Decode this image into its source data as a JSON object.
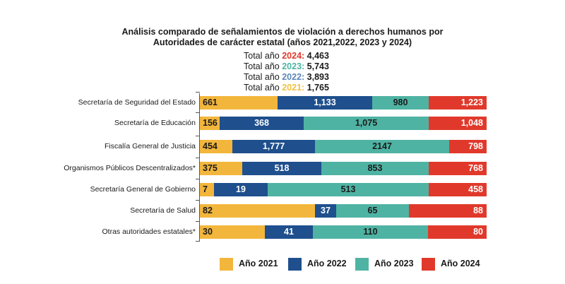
{
  "chart_data": {
    "type": "bar",
    "orientation": "horizontal",
    "stacked": true,
    "title": [
      "Análisis comparado de señalamientos de violación a derechos humanos por",
      "Autoridades de carácter estatal (años 2021,2022, 2023 y 2024)"
    ],
    "totals": [
      {
        "prefix": "Total año ",
        "year": "2024",
        "value": "4,463",
        "color": "#e0392b"
      },
      {
        "prefix": "Total año ",
        "year": "2023",
        "value": "5,743",
        "color": "#4db3a2"
      },
      {
        "prefix": "Total año ",
        "year": "2022",
        "value": "3,893",
        "color": "#5b86b8"
      },
      {
        "prefix": "Total año ",
        "year": "2021",
        "value": "1,765",
        "color": "#f0c040"
      }
    ],
    "categories": [
      "Secretaría de Seguridad del Estado",
      "Secretaría de Educación",
      "Fiscalía General de Justicia",
      "Organismos Públicos Descentralizados*",
      "Secretaría General de Gobierno",
      "Secretaría de Salud",
      "Otras autoridades estatales*"
    ],
    "series": [
      {
        "name": "Año 2021",
        "color": "#f3b63c",
        "values": [
          661,
          156,
          454,
          375,
          7,
          82,
          30
        ],
        "labels": [
          "661",
          "156",
          "454",
          "375",
          "7",
          "82",
          "30"
        ]
      },
      {
        "name": "Año 2022",
        "color": "#1f4f8d",
        "values": [
          1133,
          368,
          1777,
          518,
          19,
          37,
          41
        ],
        "labels": [
          "1,133",
          "368",
          "1,777",
          "518",
          "19",
          "37",
          "41"
        ]
      },
      {
        "name": "Año 2023",
        "color": "#4fb3a3",
        "values": [
          980,
          1075,
          2147,
          853,
          513,
          65,
          110
        ],
        "labels": [
          "980",
          "1,075",
          "2147",
          "853",
          "513",
          "65",
          "110"
        ]
      },
      {
        "name": "Año 2024",
        "color": "#e0392b",
        "values": [
          1223,
          1048,
          798,
          768,
          458,
          88,
          80
        ],
        "labels": [
          "1,223",
          "1,048",
          "798",
          "768",
          "458",
          "88",
          "80"
        ]
      }
    ],
    "legend_position": "bottom",
    "grid": false
  }
}
